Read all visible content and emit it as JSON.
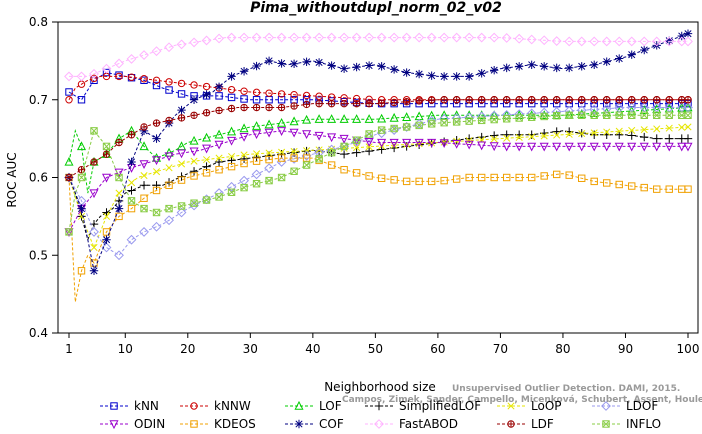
{
  "chart_data": {
    "type": "line",
    "title": "Pima_withoutdupl_norm_02_v02",
    "xlabel": "Neighborhood size",
    "ylabel": "ROC AUC",
    "xlim": [
      1,
      100
    ],
    "ylim": [
      0.4,
      0.8
    ],
    "x_ticks": [
      "1",
      "10",
      "20",
      "30",
      "40",
      "50",
      "60",
      "70",
      "80",
      "90",
      "100"
    ],
    "y_ticks": [
      "0.4",
      "0.5",
      "0.6",
      "0.7",
      "0.8"
    ],
    "grid": false,
    "legend_position": "bottom",
    "watermark": [
      "Campos, Zimek, Sander, Campello, Micenková, Schubert, Assent, Houle",
      "Unsupervised Outlier Detection. DAMI, 2015."
    ],
    "series": [
      {
        "name": "kNN",
        "color": "#0000cc",
        "marker": "square",
        "points": [
          [
            1,
            0.71
          ],
          [
            3,
            0.7
          ],
          [
            5,
            0.725
          ],
          [
            7,
            0.735
          ],
          [
            10,
            0.73
          ],
          [
            13,
            0.725
          ],
          [
            16,
            0.715
          ],
          [
            20,
            0.705
          ],
          [
            25,
            0.705
          ],
          [
            30,
            0.7
          ],
          [
            35,
            0.7
          ],
          [
            40,
            0.7
          ],
          [
            50,
            0.695
          ],
          [
            60,
            0.695
          ],
          [
            70,
            0.695
          ],
          [
            80,
            0.695
          ],
          [
            90,
            0.695
          ],
          [
            100,
            0.695
          ]
        ]
      },
      {
        "name": "kNNW",
        "color": "#cc0000",
        "marker": "circle",
        "points": [
          [
            1,
            0.7
          ],
          [
            2,
            0.715
          ],
          [
            4,
            0.725
          ],
          [
            6,
            0.73
          ],
          [
            10,
            0.73
          ],
          [
            15,
            0.725
          ],
          [
            20,
            0.72
          ],
          [
            25,
            0.715
          ],
          [
            30,
            0.71
          ],
          [
            40,
            0.705
          ],
          [
            50,
            0.7
          ],
          [
            60,
            0.7
          ],
          [
            70,
            0.7
          ],
          [
            80,
            0.7
          ],
          [
            90,
            0.7
          ],
          [
            100,
            0.7
          ]
        ]
      },
      {
        "name": "LOF",
        "color": "#00cc00",
        "marker": "triangle-up",
        "points": [
          [
            1,
            0.62
          ],
          [
            2,
            0.66
          ],
          [
            3,
            0.64
          ],
          [
            4,
            0.58
          ],
          [
            5,
            0.62
          ],
          [
            7,
            0.63
          ],
          [
            9,
            0.65
          ],
          [
            11,
            0.66
          ],
          [
            13,
            0.64
          ],
          [
            15,
            0.625
          ],
          [
            18,
            0.635
          ],
          [
            20,
            0.645
          ],
          [
            25,
            0.655
          ],
          [
            30,
            0.665
          ],
          [
            35,
            0.67
          ],
          [
            40,
            0.675
          ],
          [
            50,
            0.675
          ],
          [
            60,
            0.68
          ],
          [
            70,
            0.68
          ],
          [
            80,
            0.68
          ],
          [
            90,
            0.685
          ],
          [
            100,
            0.69
          ]
        ]
      },
      {
        "name": "SimplifiedLOF",
        "color": "#000000",
        "marker": "plus",
        "points": [
          [
            1,
            0.6
          ],
          [
            2,
            0.58
          ],
          [
            3,
            0.55
          ],
          [
            4,
            0.52
          ],
          [
            5,
            0.54
          ],
          [
            6,
            0.55
          ],
          [
            8,
            0.56
          ],
          [
            10,
            0.58
          ],
          [
            13,
            0.59
          ],
          [
            16,
            0.59
          ],
          [
            20,
            0.605
          ],
          [
            25,
            0.62
          ],
          [
            30,
            0.625
          ],
          [
            35,
            0.63
          ],
          [
            40,
            0.635
          ],
          [
            45,
            0.63
          ],
          [
            50,
            0.635
          ],
          [
            55,
            0.64
          ],
          [
            60,
            0.645
          ],
          [
            65,
            0.65
          ],
          [
            70,
            0.655
          ],
          [
            75,
            0.655
          ],
          [
            80,
            0.66
          ],
          [
            85,
            0.655
          ],
          [
            90,
            0.655
          ],
          [
            95,
            0.65
          ],
          [
            100,
            0.65
          ]
        ]
      },
      {
        "name": "LoOP",
        "color": "#e6e600",
        "marker": "x",
        "points": [
          [
            1,
            0.6
          ],
          [
            3,
            0.55
          ],
          [
            5,
            0.51
          ],
          [
            7,
            0.55
          ],
          [
            9,
            0.58
          ],
          [
            12,
            0.6
          ],
          [
            16,
            0.61
          ],
          [
            20,
            0.62
          ],
          [
            25,
            0.625
          ],
          [
            30,
            0.63
          ],
          [
            40,
            0.635
          ],
          [
            50,
            0.64
          ],
          [
            60,
            0.645
          ],
          [
            70,
            0.65
          ],
          [
            80,
            0.655
          ],
          [
            90,
            0.66
          ],
          [
            100,
            0.665
          ]
        ]
      },
      {
        "name": "LDOF",
        "color": "#9999ee",
        "marker": "diamond",
        "points": [
          [
            1,
            0.6
          ],
          [
            3,
            0.57
          ],
          [
            5,
            0.53
          ],
          [
            7,
            0.51
          ],
          [
            9,
            0.5
          ],
          [
            11,
            0.52
          ],
          [
            13,
            0.53
          ],
          [
            16,
            0.54
          ],
          [
            20,
            0.56
          ],
          [
            25,
            0.58
          ],
          [
            30,
            0.6
          ],
          [
            35,
            0.62
          ],
          [
            40,
            0.63
          ],
          [
            45,
            0.64
          ],
          [
            50,
            0.655
          ],
          [
            60,
            0.675
          ],
          [
            70,
            0.68
          ],
          [
            80,
            0.685
          ],
          [
            90,
            0.69
          ],
          [
            100,
            0.69
          ]
        ]
      },
      {
        "name": "ODIN",
        "color": "#9900cc",
        "marker": "triangle-down",
        "points": [
          [
            1,
            0.53
          ],
          [
            3,
            0.56
          ],
          [
            5,
            0.58
          ],
          [
            7,
            0.6
          ],
          [
            10,
            0.61
          ],
          [
            14,
            0.62
          ],
          [
            18,
            0.63
          ],
          [
            22,
            0.635
          ],
          [
            26,
            0.645
          ],
          [
            30,
            0.655
          ],
          [
            35,
            0.66
          ],
          [
            40,
            0.655
          ],
          [
            45,
            0.65
          ],
          [
            50,
            0.645
          ],
          [
            55,
            0.645
          ],
          [
            60,
            0.645
          ],
          [
            70,
            0.64
          ],
          [
            80,
            0.64
          ],
          [
            90,
            0.64
          ],
          [
            100,
            0.64
          ]
        ]
      },
      {
        "name": "KDEOS",
        "color": "#f0a000",
        "marker": "square",
        "points": [
          [
            1,
            0.6
          ],
          [
            2,
            0.44
          ],
          [
            3,
            0.48
          ],
          [
            4,
            0.5
          ],
          [
            5,
            0.49
          ],
          [
            6,
            0.51
          ],
          [
            7,
            0.53
          ],
          [
            9,
            0.55
          ],
          [
            11,
            0.56
          ],
          [
            14,
            0.58
          ],
          [
            17,
            0.59
          ],
          [
            20,
            0.6
          ],
          [
            25,
            0.61
          ],
          [
            30,
            0.62
          ],
          [
            35,
            0.625
          ],
          [
            40,
            0.625
          ],
          [
            45,
            0.61
          ],
          [
            50,
            0.6
          ],
          [
            55,
            0.595
          ],
          [
            60,
            0.595
          ],
          [
            65,
            0.6
          ],
          [
            70,
            0.6
          ],
          [
            75,
            0.6
          ],
          [
            80,
            0.605
          ],
          [
            85,
            0.595
          ],
          [
            90,
            0.59
          ],
          [
            95,
            0.585
          ],
          [
            100,
            0.585
          ]
        ]
      },
      {
        "name": "COF",
        "color": "#000080",
        "marker": "asterisk",
        "points": [
          [
            1,
            0.6
          ],
          [
            3,
            0.56
          ],
          [
            5,
            0.48
          ],
          [
            7,
            0.52
          ],
          [
            9,
            0.56
          ],
          [
            11,
            0.62
          ],
          [
            13,
            0.66
          ],
          [
            15,
            0.65
          ],
          [
            18,
            0.68
          ],
          [
            21,
            0.7
          ],
          [
            24,
            0.71
          ],
          [
            27,
            0.73
          ],
          [
            30,
            0.74
          ],
          [
            33,
            0.75
          ],
          [
            36,
            0.745
          ],
          [
            40,
            0.75
          ],
          [
            45,
            0.74
          ],
          [
            50,
            0.745
          ],
          [
            55,
            0.735
          ],
          [
            60,
            0.73
          ],
          [
            65,
            0.73
          ],
          [
            70,
            0.74
          ],
          [
            75,
            0.745
          ],
          [
            80,
            0.74
          ],
          [
            85,
            0.745
          ],
          [
            90,
            0.755
          ],
          [
            95,
            0.77
          ],
          [
            100,
            0.785
          ]
        ]
      },
      {
        "name": "FastABOD",
        "color": "#ffb3ff",
        "marker": "diamond",
        "points": [
          [
            1,
            0.73
          ],
          [
            4,
            0.73
          ],
          [
            7,
            0.74
          ],
          [
            10,
            0.75
          ],
          [
            14,
            0.76
          ],
          [
            18,
            0.77
          ],
          [
            22,
            0.775
          ],
          [
            26,
            0.78
          ],
          [
            30,
            0.78
          ],
          [
            40,
            0.78
          ],
          [
            50,
            0.78
          ],
          [
            60,
            0.78
          ],
          [
            70,
            0.78
          ],
          [
            80,
            0.775
          ],
          [
            90,
            0.775
          ],
          [
            100,
            0.775
          ]
        ]
      },
      {
        "name": "LDF",
        "color": "#990000",
        "marker": "circle-plus",
        "points": [
          [
            1,
            0.6
          ],
          [
            3,
            0.61
          ],
          [
            5,
            0.62
          ],
          [
            7,
            0.63
          ],
          [
            9,
            0.645
          ],
          [
            11,
            0.655
          ],
          [
            13,
            0.665
          ],
          [
            15,
            0.67
          ],
          [
            18,
            0.675
          ],
          [
            21,
            0.68
          ],
          [
            24,
            0.685
          ],
          [
            28,
            0.69
          ],
          [
            35,
            0.69
          ],
          [
            40,
            0.695
          ],
          [
            50,
            0.695
          ],
          [
            60,
            0.7
          ],
          [
            70,
            0.7
          ],
          [
            80,
            0.7
          ],
          [
            90,
            0.7
          ],
          [
            100,
            0.7
          ]
        ]
      },
      {
        "name": "INFLO",
        "color": "#88cc44",
        "marker": "box-x",
        "points": [
          [
            1,
            0.53
          ],
          [
            2,
            0.58
          ],
          [
            3,
            0.6
          ],
          [
            5,
            0.66
          ],
          [
            7,
            0.64
          ],
          [
            9,
            0.6
          ],
          [
            11,
            0.57
          ],
          [
            13,
            0.56
          ],
          [
            15,
            0.555
          ],
          [
            17,
            0.56
          ],
          [
            20,
            0.565
          ],
          [
            25,
            0.575
          ],
          [
            30,
            0.59
          ],
          [
            35,
            0.6
          ],
          [
            40,
            0.62
          ],
          [
            45,
            0.64
          ],
          [
            50,
            0.66
          ],
          [
            60,
            0.67
          ],
          [
            70,
            0.675
          ],
          [
            80,
            0.68
          ],
          [
            90,
            0.68
          ],
          [
            100,
            0.68
          ]
        ]
      }
    ]
  }
}
